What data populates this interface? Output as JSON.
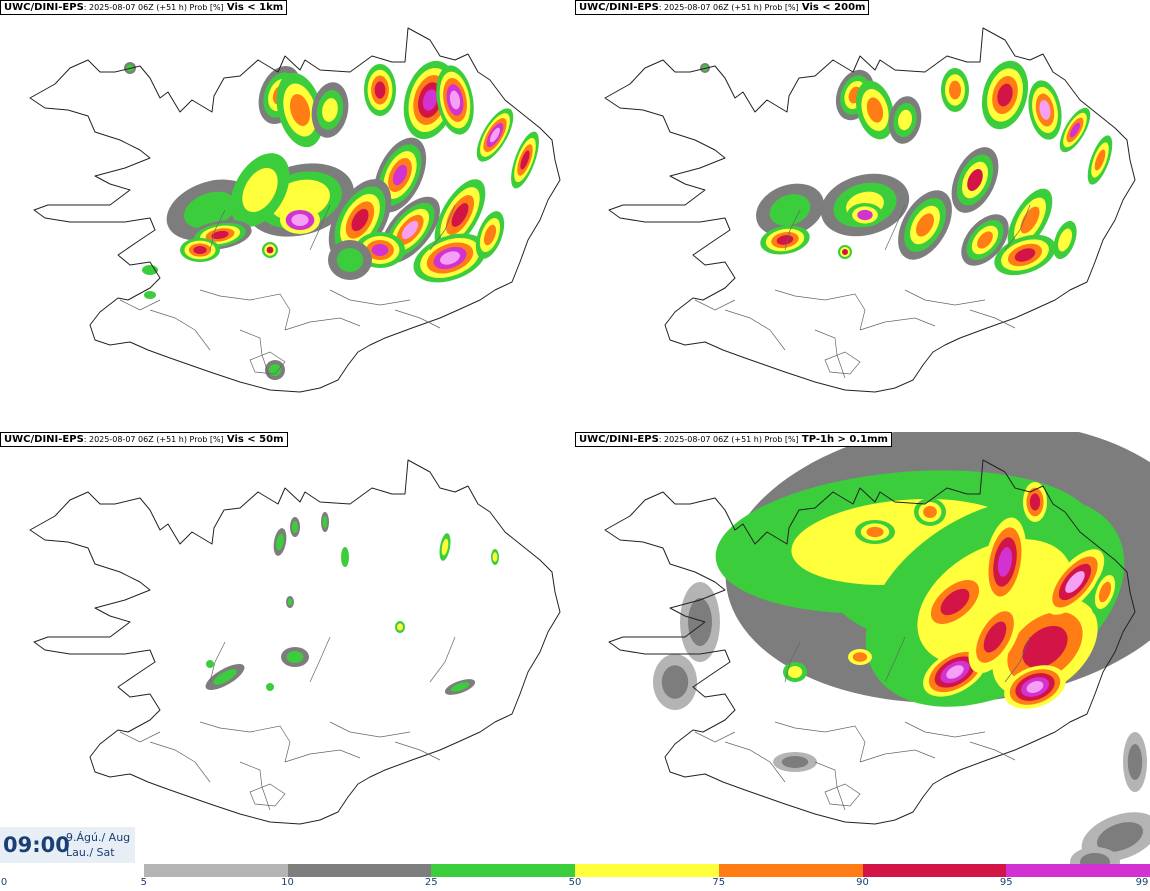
{
  "panels": [
    {
      "model": "UWC/DINI-EPS",
      "meta": ": 2025-08-07 06Z (+51 h) Prob [%]",
      "variable": "Vis < 1km"
    },
    {
      "model": "UWC/DINI-EPS",
      "meta": ": 2025-08-07 06Z (+51 h) Prob [%]",
      "variable": "Vis < 200m"
    },
    {
      "model": "UWC/DINI-EPS",
      "meta": ": 2025-08-07 06Z (+51 h) Prob [%]",
      "variable": "Vis < 50m"
    },
    {
      "model": "UWC/DINI-EPS",
      "meta": ": 2025-08-07 06Z (+51 h) Prob [%]",
      "variable": "TP-1h > 0.1mm"
    }
  ],
  "valid_time": {
    "time": "09:00",
    "date_line1": "9.Ágú./ Aug",
    "date_line2": "Lau./ Sat"
  },
  "colorbar": {
    "ticks": [
      "0",
      "5",
      "10",
      "25",
      "50",
      "75",
      "90",
      "95",
      "99"
    ],
    "colors": [
      "#ffffff",
      "#b4b4b4",
      "#7d7d7d",
      "#3ccd3c",
      "#ffff3c",
      "#ff7d14",
      "#d21446",
      "#d232d2",
      "#f5a0f5"
    ]
  }
}
